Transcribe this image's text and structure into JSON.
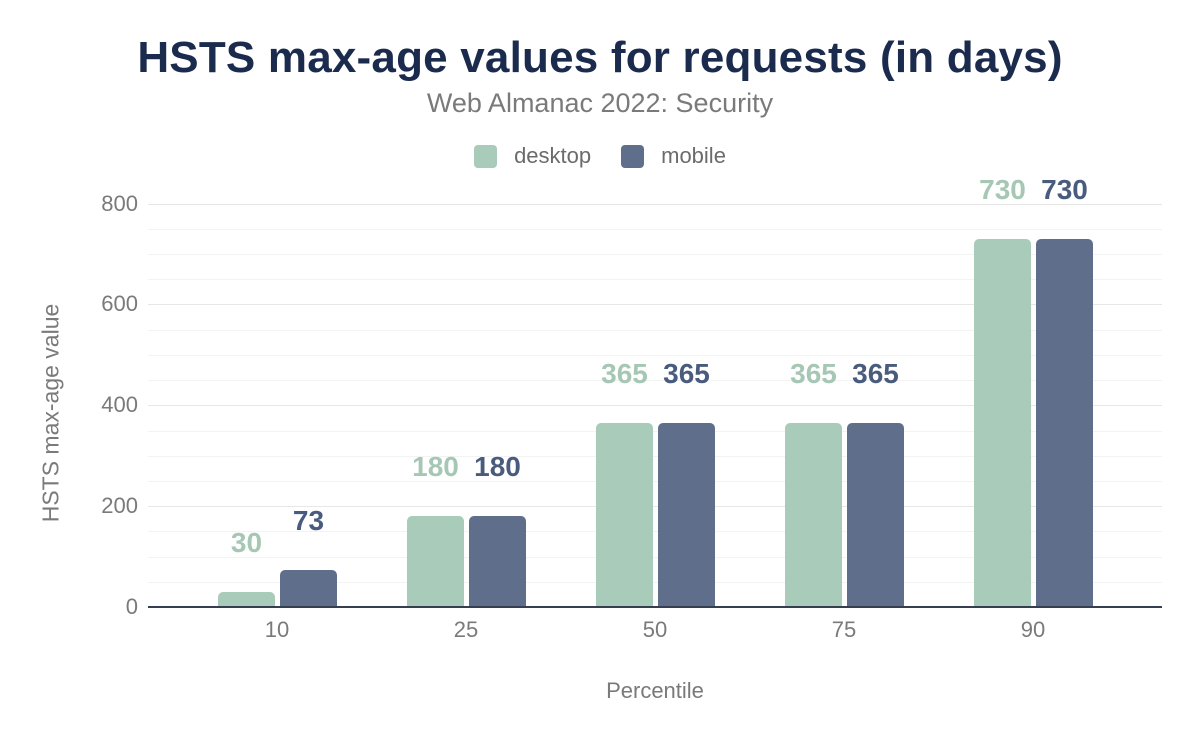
{
  "title": "HSTS max-age values for requests (in days)",
  "subtitle": "Web Almanac 2022: Security",
  "legend": {
    "items": [
      {
        "label": "desktop",
        "color": "#a9cbb9"
      },
      {
        "label": "mobile",
        "color": "#5f6f8b"
      }
    ]
  },
  "chart_data": {
    "type": "bar",
    "categories": [
      "10",
      "25",
      "50",
      "75",
      "90"
    ],
    "series": [
      {
        "name": "desktop",
        "values": [
          30,
          180,
          365,
          365,
          730
        ],
        "color": "#a9cbb9",
        "label_color": "#a5c7b3"
      },
      {
        "name": "mobile",
        "values": [
          73,
          180,
          365,
          365,
          730
        ],
        "color": "#5f6f8b",
        "label_color": "#4a5c7d"
      }
    ],
    "title": "HSTS max-age values for requests (in days)",
    "subtitle": "Web Almanac 2022: Security",
    "xlabel": "Percentile",
    "ylabel": "HSTS max-age value",
    "ylim": [
      0,
      800
    ],
    "yticks": [
      0,
      200,
      400,
      600,
      800
    ],
    "minor_tick_interval": 50,
    "grid": "horizontal major + minor",
    "legend_position": "top-center"
  },
  "colors": {
    "title_text": "#1b2b4d",
    "subtitle_text": "#7a7a7a",
    "legend_text": "#6b6b6b",
    "axis_tick_text": "#7a7a7a",
    "axis_title_text": "#7a7a7a",
    "axis_line": "#353f4f",
    "grid_major": "#e7e7e7",
    "grid_minor": "#f3f3f3"
  }
}
